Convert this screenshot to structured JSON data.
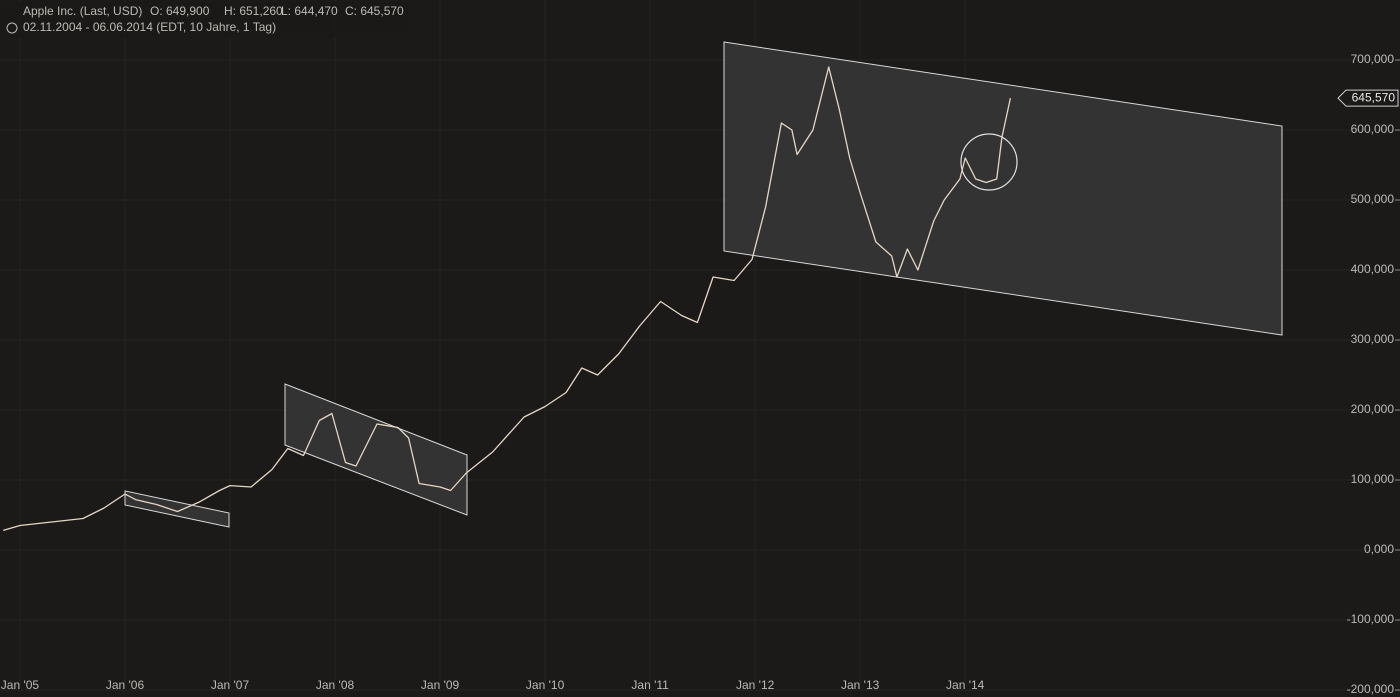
{
  "chart_data": {
    "type": "line",
    "title": "Apple Inc. (Last, USD)",
    "ohlc_texts": [
      "O: 649,900",
      "H: 651,260",
      "L: 644,470",
      "C: 645,570"
    ],
    "subtitle": "02.11.2004 - 06.06.2014 (EDT, 10 Jahre, 1 Tag)",
    "price_tag": "645,570",
    "x": [
      2004.84,
      2005.0,
      2005.3,
      2005.6,
      2005.8,
      2006.0,
      2006.1,
      2006.3,
      2006.5,
      2006.7,
      2006.9,
      2007.0,
      2007.2,
      2007.4,
      2007.55,
      2007.7,
      2007.85,
      2007.97,
      2008.1,
      2008.2,
      2008.4,
      2008.6,
      2008.7,
      2008.8,
      2009.0,
      2009.1,
      2009.25,
      2009.5,
      2009.8,
      2010.0,
      2010.2,
      2010.35,
      2010.5,
      2010.7,
      2010.9,
      2011.1,
      2011.3,
      2011.45,
      2011.6,
      2011.8,
      2011.97,
      2012.1,
      2012.25,
      2012.35,
      2012.4,
      2012.55,
      2012.7,
      2012.8,
      2012.9,
      2013.0,
      2013.15,
      2013.3,
      2013.35,
      2013.45,
      2013.55,
      2013.7,
      2013.8,
      2013.95,
      2014.0,
      2014.1,
      2014.2,
      2014.3,
      2014.35,
      2014.43
    ],
    "series": [
      {
        "name": "Apple Inc.",
        "color": "#e6d6c4",
        "values": [
          28000,
          35000,
          40000,
          45000,
          60000,
          80000,
          72000,
          65000,
          55000,
          68000,
          85000,
          92000,
          90000,
          115000,
          145000,
          135000,
          185000,
          195000,
          125000,
          120000,
          180000,
          175000,
          160000,
          95000,
          90000,
          85000,
          110000,
          140000,
          190000,
          205000,
          225000,
          260000,
          250000,
          280000,
          320000,
          355000,
          335000,
          325000,
          390000,
          385000,
          415000,
          490000,
          610000,
          600000,
          565000,
          600000,
          690000,
          630000,
          560000,
          510000,
          440000,
          420000,
          390000,
          430000,
          400000,
          470000,
          500000,
          530000,
          560000,
          530000,
          525000,
          530000,
          590000,
          645570
        ]
      }
    ],
    "xlim": [
      2004.81,
      2018.14
    ],
    "xticks": [
      {
        "value": 2005,
        "label": "Jan '05"
      },
      {
        "value": 2006,
        "label": "Jan '06"
      },
      {
        "value": 2007,
        "label": "Jan '07"
      },
      {
        "value": 2008,
        "label": "Jan '08"
      },
      {
        "value": 2009,
        "label": "Jan '09"
      },
      {
        "value": 2010,
        "label": "Jan '10"
      },
      {
        "value": 2011,
        "label": "Jan '11"
      },
      {
        "value": 2012,
        "label": "Jan '12"
      },
      {
        "value": 2013,
        "label": "Jan '13"
      },
      {
        "value": 2014,
        "label": "Jan '14"
      }
    ],
    "ylim": [
      -210000,
      785700
    ],
    "yticks": [
      {
        "value": 700000,
        "label": "700,000"
      },
      {
        "value": 600000,
        "label": "600,000"
      },
      {
        "value": 500000,
        "label": "500,000"
      },
      {
        "value": 400000,
        "label": "400,000"
      },
      {
        "value": 300000,
        "label": "300,000"
      },
      {
        "value": 200000,
        "label": "200,000"
      },
      {
        "value": 100000,
        "label": "100,000"
      },
      {
        "value": 0,
        "label": "0,000"
      },
      {
        "value": -100000,
        "label": "-100,000"
      },
      {
        "value": -200000,
        "label": "-200,000"
      }
    ],
    "grid": true
  }
}
